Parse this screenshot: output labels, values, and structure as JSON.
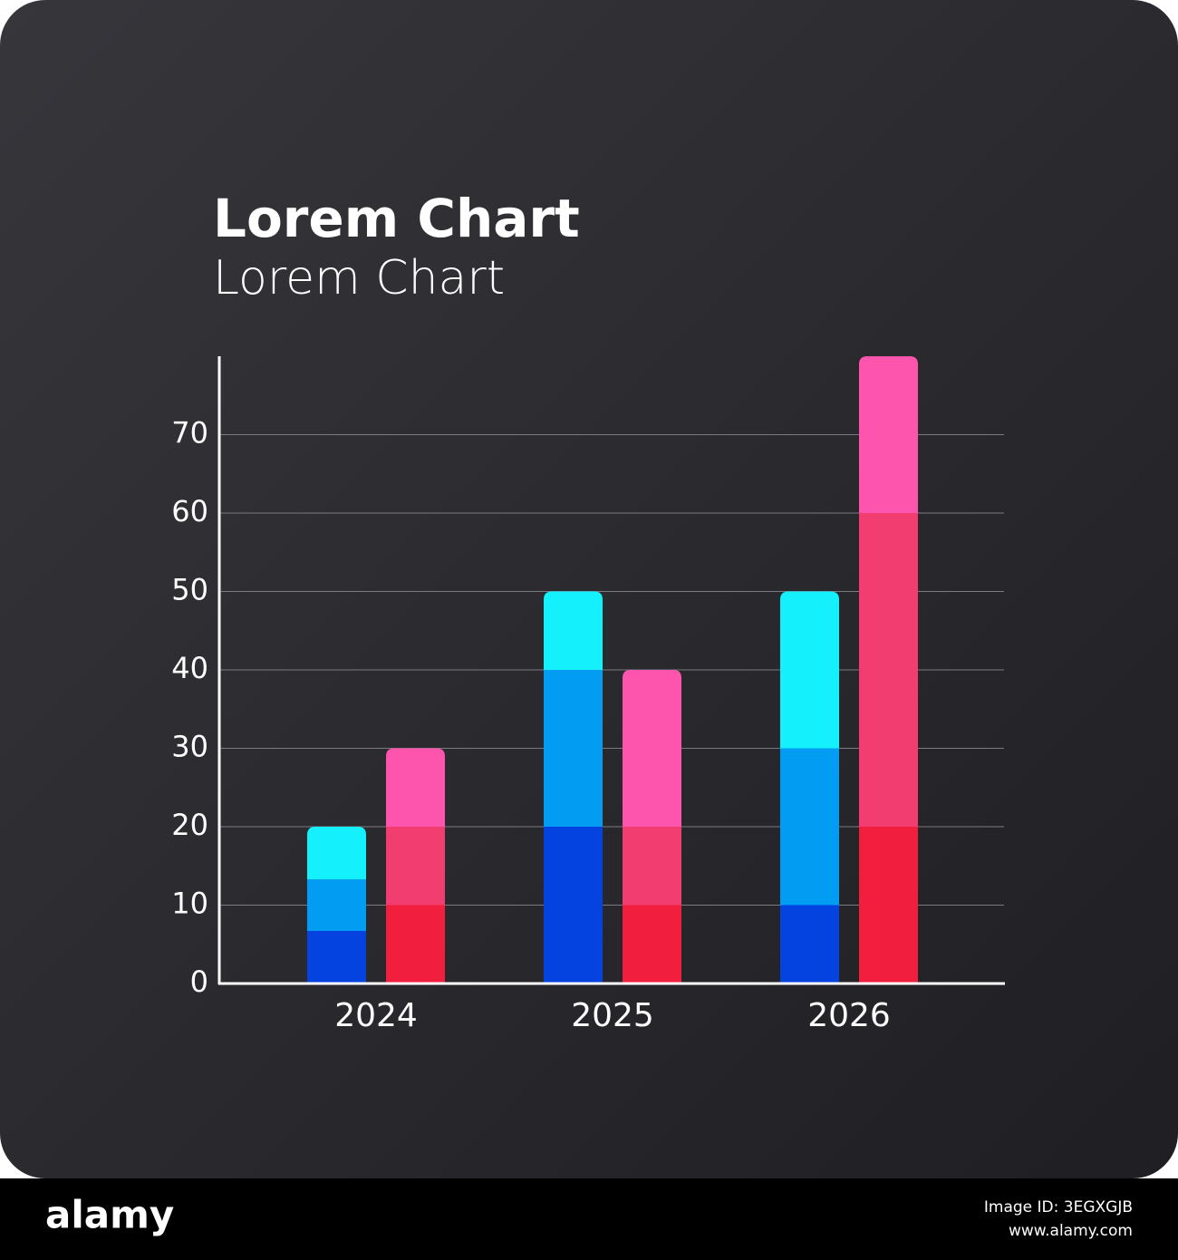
{
  "chart_data": {
    "type": "stacked-grouped-bar",
    "title": "Lorem Chart",
    "subtitle": "Lorem Chart",
    "categories": [
      "2024",
      "2025",
      "2026"
    ],
    "series": [
      {
        "stack": 0,
        "color": "#0443e0",
        "values": [
          6.7,
          20,
          10
        ]
      },
      {
        "stack": 0,
        "color": "#029cf3",
        "values": [
          6.6,
          20,
          20
        ]
      },
      {
        "stack": 0,
        "color": "#14f0fc",
        "values": [
          6.7,
          10,
          20
        ]
      },
      {
        "stack": 1,
        "color": "#f21e3d",
        "values": [
          10,
          10,
          20
        ]
      },
      {
        "stack": 1,
        "color": "#f23d70",
        "values": [
          10,
          10,
          40
        ]
      },
      {
        "stack": 1,
        "color": "#fd55ad",
        "values": [
          10,
          20,
          20
        ]
      }
    ],
    "ylim": [
      0,
      80
    ],
    "yticks": [
      0,
      10,
      20,
      30,
      40,
      50,
      60,
      70
    ],
    "grid": true
  },
  "footer": {
    "brand": "alamy",
    "image_id": "Image ID: 3EGXGJB",
    "url": "www.alamy.com"
  }
}
